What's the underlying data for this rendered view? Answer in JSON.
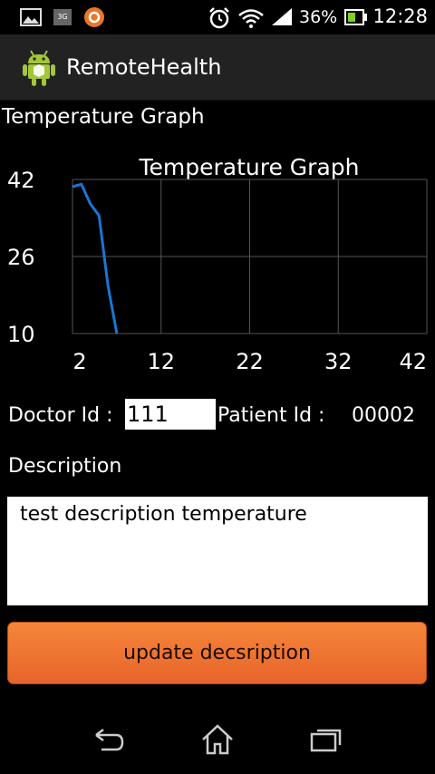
{
  "status_bar": {
    "battery_percent": "36%",
    "time": "12:28",
    "icons": [
      "gallery-icon",
      "3g-icon",
      "app-circle-icon",
      "alarm-icon",
      "wifi-icon",
      "signal-icon",
      "battery-icon"
    ]
  },
  "action_bar": {
    "title": "RemoteHealth",
    "icon": "android-robot-icon"
  },
  "section": {
    "title": "Temperature Graph"
  },
  "chart_data": {
    "type": "line",
    "title": "Temperature Graph",
    "xlabel": "",
    "ylabel": "",
    "xlim": [
      2,
      42
    ],
    "ylim": [
      10,
      42
    ],
    "x_ticks": [
      2,
      12,
      22,
      32,
      42
    ],
    "y_ticks": [
      10,
      26,
      42
    ],
    "grid": true,
    "series": [
      {
        "color": "#1a76d2",
        "x": [
          2,
          3,
          4,
          5,
          6,
          7
        ],
        "y": [
          40.5,
          41,
          37,
          34.5,
          20,
          10
        ]
      }
    ]
  },
  "ids": {
    "doctor_label": "Doctor Id :",
    "doctor_value": "111",
    "patient_label": "Patient Id :",
    "patient_value": "00002"
  },
  "description": {
    "label": "Description",
    "value": "test description temperature"
  },
  "update_button": {
    "label": "update decsription",
    "color": "#ee7330"
  },
  "navbar": {
    "icons": [
      "back-icon",
      "home-icon",
      "recent-apps-icon"
    ]
  }
}
